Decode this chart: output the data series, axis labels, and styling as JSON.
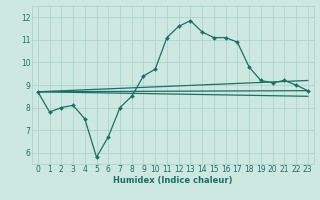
{
  "xlabel": "Humidex (Indice chaleur)",
  "ylabel": "",
  "xlim": [
    -0.5,
    23.5
  ],
  "ylim": [
    5.5,
    12.5
  ],
  "yticks": [
    6,
    7,
    8,
    9,
    10,
    11,
    12
  ],
  "xticks": [
    0,
    1,
    2,
    3,
    4,
    5,
    6,
    7,
    8,
    9,
    10,
    11,
    12,
    13,
    14,
    15,
    16,
    17,
    18,
    19,
    20,
    21,
    22,
    23
  ],
  "bg_color": "#cce8e0",
  "grid_color": "#aacfc8",
  "line_color": "#1a7068",
  "lines": [
    {
      "x": [
        0,
        1,
        2,
        3,
        4,
        5,
        6,
        7,
        8,
        9,
        10,
        11,
        12,
        13,
        14,
        15,
        16,
        17,
        18,
        19,
        20,
        21,
        22,
        23
      ],
      "y": [
        8.7,
        7.8,
        8.0,
        8.1,
        7.5,
        5.8,
        6.7,
        8.0,
        8.5,
        9.4,
        9.7,
        11.1,
        11.6,
        11.85,
        11.35,
        11.1,
        11.1,
        10.9,
        9.8,
        9.2,
        9.1,
        9.2,
        9.0,
        8.75
      ],
      "marker": "D",
      "markersize": 2.0,
      "linewidth": 0.9
    },
    {
      "x": [
        0,
        23
      ],
      "y": [
        8.7,
        8.75
      ],
      "marker": null,
      "linewidth": 0.9
    },
    {
      "x": [
        0,
        23
      ],
      "y": [
        8.7,
        9.2
      ],
      "marker": null,
      "linewidth": 0.9
    },
    {
      "x": [
        0,
        23
      ],
      "y": [
        8.7,
        8.5
      ],
      "marker": null,
      "linewidth": 0.9
    }
  ]
}
